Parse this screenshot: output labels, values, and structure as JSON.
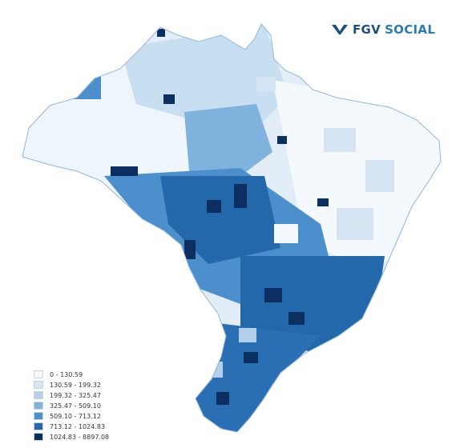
{
  "brand": {
    "name_part1": "FGV",
    "name_part2": "SOCIAL",
    "logo_icon": "fgv-chevron-logo",
    "colors": {
      "primary": "#1d4f7c",
      "accent": "#2a7ab8"
    }
  },
  "legend": {
    "items": [
      {
        "label": "0 - 130.59",
        "color": "#f4f9fe"
      },
      {
        "label": "130.59 - 199.32",
        "color": "#d5e5f4"
      },
      {
        "label": "199.32 - 325.47",
        "color": "#b3cfe9"
      },
      {
        "label": "325.47 - 509.10",
        "color": "#7fb2dc"
      },
      {
        "label": "509.10 - 713.12",
        "color": "#4b8fcc"
      },
      {
        "label": "713.12 - 1024.83",
        "color": "#2468ac"
      },
      {
        "label": "1024.83 - 8897.08",
        "color": "#0c2f61"
      }
    ]
  },
  "map": {
    "region": "Brazil municipalities choropleth",
    "region_colors": {
      "north_west": "#eef5fc",
      "north_mid": "#c8def1",
      "north_east_amazon": "#deebf7",
      "center_west": "#4b8fcc",
      "center_dark": "#2468ac",
      "northeast": "#f4f9fe",
      "southeast": "#2468ac",
      "south": "#2a6fb3",
      "border": "#8fb7dc"
    }
  }
}
